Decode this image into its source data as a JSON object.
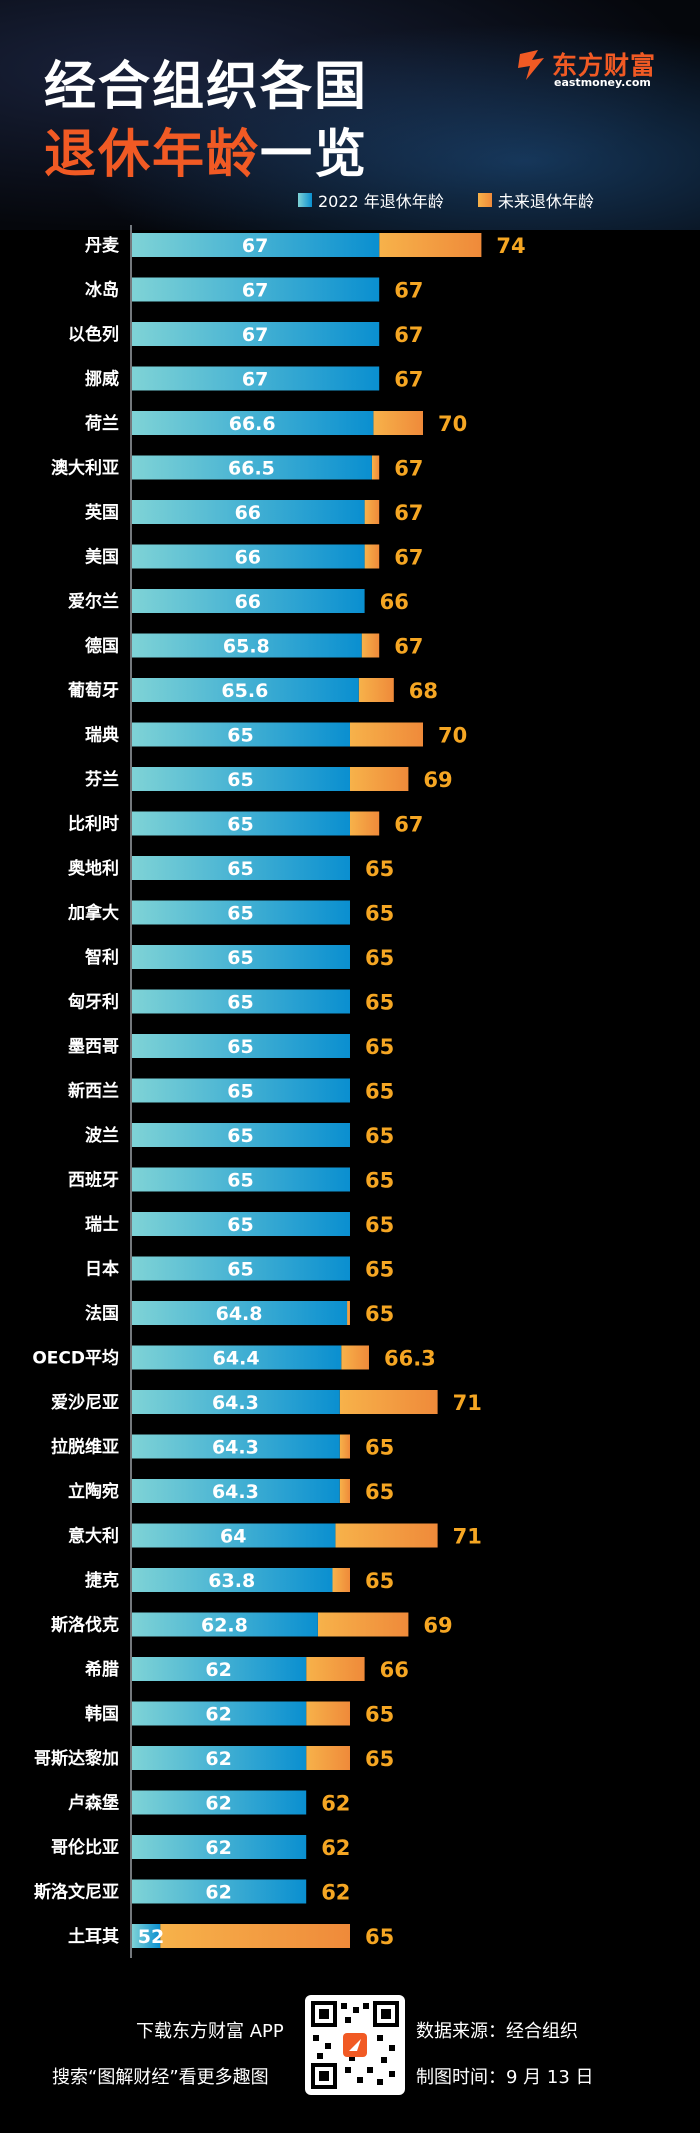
{
  "title": {
    "line1": "经合组织各国",
    "line2_highlight": "退休年龄",
    "line2_rest": "一览"
  },
  "logo": {
    "cn": "东方财富",
    "en": "eastmoney.com",
    "color": "#f15a24"
  },
  "footer": {
    "download": "下载东方财富 APP",
    "search": "搜索“图解财经”看更多趣图",
    "source": "数据来源：经合组织",
    "date": "制图时间：9 月 13 日"
  },
  "colors": {
    "current_start": "#7fd3d6",
    "current_end": "#0a8fd0",
    "future_start": "#f7b24a",
    "future_end": "#ef8a3a",
    "future_label": "#f5a623"
  },
  "chart_data": {
    "type": "bar",
    "orientation": "horizontal",
    "title": "经合组织各国退休年龄一览",
    "legend": [
      "2022 年退休年龄",
      "未来退休年龄"
    ],
    "legend_position": "top-right",
    "categories": [
      "丹麦",
      "冰岛",
      "以色列",
      "挪威",
      "荷兰",
      "澳大利亚",
      "英国",
      "美国",
      "爱尔兰",
      "德国",
      "葡萄牙",
      "瑞典",
      "芬兰",
      "比利时",
      "奥地利",
      "加拿大",
      "智利",
      "匈牙利",
      "墨西哥",
      "新西兰",
      "波兰",
      "西班牙",
      "瑞士",
      "日本",
      "法国",
      "OECD平均",
      "爱沙尼亚",
      "拉脱维亚",
      "立陶宛",
      "意大利",
      "捷克",
      "斯洛伐克",
      "希腊",
      "韩国",
      "哥斯达黎加",
      "卢森堡",
      "哥伦比亚",
      "斯洛文尼亚",
      "土耳其"
    ],
    "series": [
      {
        "name": "2022 年退休年龄",
        "values": [
          67,
          67,
          67,
          67,
          66.6,
          66.5,
          66,
          66,
          66,
          65.8,
          65.6,
          65,
          65,
          65,
          65,
          65,
          65,
          65,
          65,
          65,
          65,
          65,
          65,
          65,
          64.8,
          64.4,
          64.3,
          64.3,
          64.3,
          64,
          63.8,
          62.8,
          62,
          62,
          62,
          62,
          62,
          62,
          52
        ]
      },
      {
        "name": "未来退休年龄",
        "values": [
          74,
          67,
          67,
          67,
          70,
          67,
          67,
          67,
          66,
          67,
          68,
          70,
          69,
          67,
          65,
          65,
          65,
          65,
          65,
          65,
          65,
          65,
          65,
          65,
          65,
          66.3,
          71,
          65,
          65,
          71,
          65,
          69,
          66,
          65,
          65,
          62,
          62,
          62,
          65
        ]
      }
    ],
    "axis_start_value": 50,
    "xlim": [
      50,
      76
    ]
  }
}
